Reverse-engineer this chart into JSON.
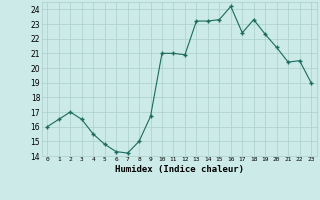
{
  "x": [
    0,
    1,
    2,
    3,
    4,
    5,
    6,
    7,
    8,
    9,
    10,
    11,
    12,
    13,
    14,
    15,
    16,
    17,
    18,
    19,
    20,
    21,
    22,
    23
  ],
  "y": [
    16,
    16.5,
    17,
    16.5,
    15.5,
    14.8,
    14.3,
    14.2,
    15,
    16.7,
    21,
    21,
    20.9,
    23.2,
    23.2,
    23.3,
    24.2,
    22.4,
    23.3,
    22.3,
    21.4,
    20.4,
    20.5,
    19
  ],
  "line_color": "#1a6b5e",
  "marker": "+",
  "marker_size": 3.5,
  "marker_lw": 1.0,
  "background_color": "#cceae7",
  "grid_color": "#aacfcc",
  "xlabel": "Humidex (Indice chaleur)",
  "ylim": [
    14,
    24.5
  ],
  "xlim": [
    -0.5,
    23.5
  ],
  "yticks": [
    14,
    15,
    16,
    17,
    18,
    19,
    20,
    21,
    22,
    23,
    24
  ],
  "xticks": [
    0,
    1,
    2,
    3,
    4,
    5,
    6,
    7,
    8,
    9,
    10,
    11,
    12,
    13,
    14,
    15,
    16,
    17,
    18,
    19,
    20,
    21,
    22,
    23
  ],
  "xtick_labels": [
    "0",
    "1",
    "2",
    "3",
    "4",
    "5",
    "6",
    "7",
    "8",
    "9",
    "10",
    "11",
    "12",
    "13",
    "14",
    "15",
    "16",
    "17",
    "18",
    "19",
    "20",
    "21",
    "22",
    "23"
  ]
}
